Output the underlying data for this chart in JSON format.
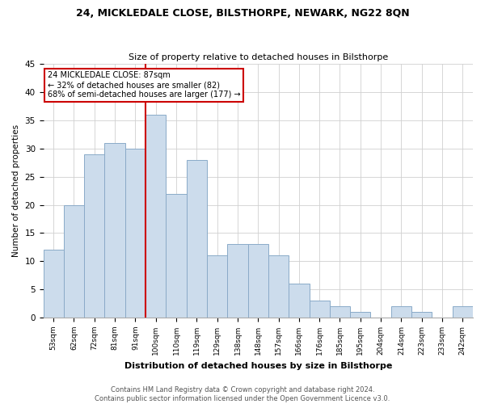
{
  "title1": "24, MICKLEDALE CLOSE, BILSTHORPE, NEWARK, NG22 8QN",
  "title2": "Size of property relative to detached houses in Bilsthorpe",
  "xlabel": "Distribution of detached houses by size in Bilsthorpe",
  "ylabel": "Number of detached properties",
  "categories": [
    "53sqm",
    "62sqm",
    "72sqm",
    "81sqm",
    "91sqm",
    "100sqm",
    "110sqm",
    "119sqm",
    "129sqm",
    "138sqm",
    "148sqm",
    "157sqm",
    "166sqm",
    "176sqm",
    "185sqm",
    "195sqm",
    "204sqm",
    "214sqm",
    "223sqm",
    "233sqm",
    "242sqm"
  ],
  "values": [
    12,
    20,
    29,
    31,
    30,
    36,
    22,
    28,
    11,
    13,
    13,
    11,
    6,
    3,
    2,
    1,
    0,
    2,
    1,
    0,
    2
  ],
  "bar_color": "#ccdcec",
  "bar_edge_color": "#8aaac8",
  "grid_color": "#d0d0d0",
  "annotation_box_edge": "#cc0000",
  "vline_color": "#cc0000",
  "annotation_line1": "24 MICKLEDALE CLOSE: 87sqm",
  "annotation_line2": "← 32% of detached houses are smaller (82)",
  "annotation_line3": "68% of semi-detached houses are larger (177) →",
  "vline_x": 4.5,
  "ylim": [
    0,
    45
  ],
  "yticks": [
    0,
    5,
    10,
    15,
    20,
    25,
    30,
    35,
    40,
    45
  ],
  "footer1": "Contains HM Land Registry data © Crown copyright and database right 2024.",
  "footer2": "Contains public sector information licensed under the Open Government Licence v3.0."
}
